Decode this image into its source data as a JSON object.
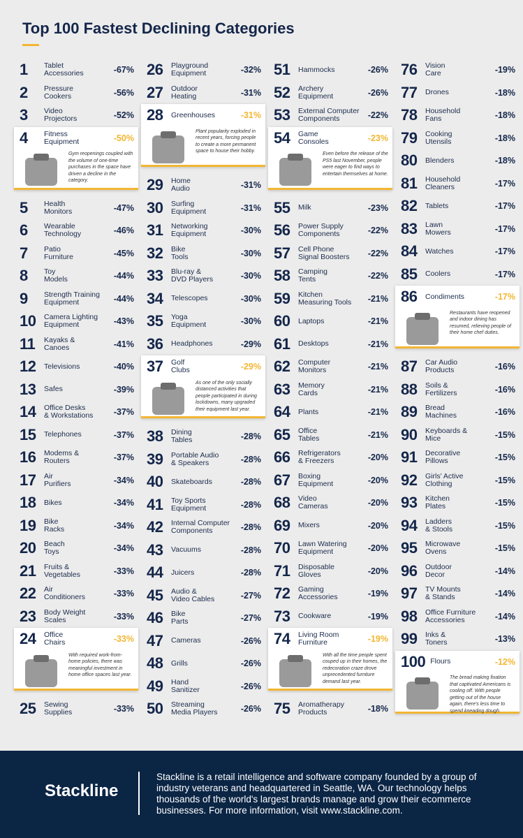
{
  "title": "Top 100 Fastest Declining Categories",
  "items": [
    {
      "rank": 1,
      "name": [
        "Tablet",
        "Accessories"
      ],
      "change": "-67%"
    },
    {
      "rank": 2,
      "name": [
        "Pressure",
        "Cookers"
      ],
      "change": "-56%"
    },
    {
      "rank": 3,
      "name": [
        "Video",
        "Projectors"
      ],
      "change": "-52%"
    },
    {
      "rank": 4,
      "name": [
        "Fitness",
        "Equipment"
      ],
      "change": "-50%",
      "note": "Gym reopenings coupled with the volume of one-time purchases in the space have driven a decline in the category."
    },
    {
      "rank": 5,
      "name": [
        "Health",
        "Monitors"
      ],
      "change": "-47%"
    },
    {
      "rank": 6,
      "name": [
        "Wearable",
        "Technology"
      ],
      "change": "-46%"
    },
    {
      "rank": 7,
      "name": [
        "Patio",
        "Furniture"
      ],
      "change": "-45%"
    },
    {
      "rank": 8,
      "name": [
        "Toy",
        "Models"
      ],
      "change": "-44%"
    },
    {
      "rank": 9,
      "name": [
        "Strength Training",
        "Equipment"
      ],
      "change": "-44%"
    },
    {
      "rank": 10,
      "name": [
        "Camera Lighting",
        "Equipment"
      ],
      "change": "-43%"
    },
    {
      "rank": 11,
      "name": [
        "Kayaks &",
        "Canoes"
      ],
      "change": "-41%"
    },
    {
      "rank": 12,
      "name": [
        "Televisions"
      ],
      "change": "-40%"
    },
    {
      "rank": 13,
      "name": [
        "Safes"
      ],
      "change": "-39%"
    },
    {
      "rank": 14,
      "name": [
        "Office Desks",
        "& Workstations"
      ],
      "change": "-37%"
    },
    {
      "rank": 15,
      "name": [
        "Telephones"
      ],
      "change": "-37%"
    },
    {
      "rank": 16,
      "name": [
        "Modems &",
        "Routers"
      ],
      "change": "-37%"
    },
    {
      "rank": 17,
      "name": [
        "Air",
        "Purifiers"
      ],
      "change": "-34%"
    },
    {
      "rank": 18,
      "name": [
        "Bikes"
      ],
      "change": "-34%"
    },
    {
      "rank": 19,
      "name": [
        "Bike",
        "Racks"
      ],
      "change": "-34%"
    },
    {
      "rank": 20,
      "name": [
        "Beach",
        "Toys"
      ],
      "change": "-34%"
    },
    {
      "rank": 21,
      "name": [
        "Fruits &",
        "Vegetables"
      ],
      "change": "-33%"
    },
    {
      "rank": 22,
      "name": [
        "Air",
        "Conditioners"
      ],
      "change": "-33%"
    },
    {
      "rank": 23,
      "name": [
        "Body Weight",
        "Scales"
      ],
      "change": "-33%"
    },
    {
      "rank": 24,
      "name": [
        "Office",
        "Chairs"
      ],
      "change": "-33%",
      "note": "With required work-from-home policies, there was meaningful investment in home office spaces last year."
    },
    {
      "rank": 25,
      "name": [
        "Sewing",
        "Supplies"
      ],
      "change": "-33%"
    },
    {
      "rank": 26,
      "name": [
        "Playground",
        "Equipment"
      ],
      "change": "-32%"
    },
    {
      "rank": 27,
      "name": [
        "Outdoor",
        "Heating"
      ],
      "change": "-31%"
    },
    {
      "rank": 28,
      "name": [
        "Greenhouses"
      ],
      "change": "-31%",
      "note": "Plant popularity exploded in recent years, forcing people to create a more permanent space to house their hobby."
    },
    {
      "rank": 29,
      "name": [
        "Home",
        "Audio"
      ],
      "change": "-31%"
    },
    {
      "rank": 30,
      "name": [
        "Surfing",
        "Equipment"
      ],
      "change": "-31%"
    },
    {
      "rank": 31,
      "name": [
        "Networking",
        "Equipment"
      ],
      "change": "-30%"
    },
    {
      "rank": 32,
      "name": [
        "Bike",
        "Tools"
      ],
      "change": "-30%"
    },
    {
      "rank": 33,
      "name": [
        "Blu-ray &",
        "DVD Players"
      ],
      "change": "-30%"
    },
    {
      "rank": 34,
      "name": [
        "Telescopes"
      ],
      "change": "-30%"
    },
    {
      "rank": 35,
      "name": [
        "Yoga",
        "Equipment"
      ],
      "change": "-30%"
    },
    {
      "rank": 36,
      "name": [
        "Headphones"
      ],
      "change": "-29%"
    },
    {
      "rank": 37,
      "name": [
        "Golf",
        "Clubs"
      ],
      "change": "-29%",
      "note": "As one of the only socially distanced activities that people participated in during lockdowns, many upgraded their equipment last year."
    },
    {
      "rank": 38,
      "name": [
        "Dining",
        "Tables"
      ],
      "change": "-28%"
    },
    {
      "rank": 39,
      "name": [
        "Portable Audio",
        "& Speakers"
      ],
      "change": "-28%"
    },
    {
      "rank": 40,
      "name": [
        "Skateboards"
      ],
      "change": "-28%"
    },
    {
      "rank": 41,
      "name": [
        "Toy Sports",
        "Equipment"
      ],
      "change": "-28%"
    },
    {
      "rank": 42,
      "name": [
        "Internal Computer",
        "Components"
      ],
      "change": "-28%"
    },
    {
      "rank": 43,
      "name": [
        "Vacuums"
      ],
      "change": "-28%"
    },
    {
      "rank": 44,
      "name": [
        "Juicers"
      ],
      "change": "-28%"
    },
    {
      "rank": 45,
      "name": [
        "Audio &",
        "Video Cables"
      ],
      "change": "-27%"
    },
    {
      "rank": 46,
      "name": [
        "Bike",
        "Parts"
      ],
      "change": "-27%"
    },
    {
      "rank": 47,
      "name": [
        "Cameras"
      ],
      "change": "-26%"
    },
    {
      "rank": 48,
      "name": [
        "Grills"
      ],
      "change": "-26%"
    },
    {
      "rank": 49,
      "name": [
        "Hand",
        "Sanitizer"
      ],
      "change": "-26%"
    },
    {
      "rank": 50,
      "name": [
        "Streaming",
        "Media Players"
      ],
      "change": "-26%"
    },
    {
      "rank": 51,
      "name": [
        "Hammocks"
      ],
      "change": "-26%"
    },
    {
      "rank": 52,
      "name": [
        "Archery",
        "Equipment"
      ],
      "change": "-26%"
    },
    {
      "rank": 53,
      "name": [
        "External Computer",
        "Components"
      ],
      "change": "-22%"
    },
    {
      "rank": 54,
      "name": [
        "Game",
        "Consoles"
      ],
      "change": "-23%",
      "note": "Even before the release of the PS5 last November, people were eager to find ways to entertain themselves at home."
    },
    {
      "rank": 55,
      "name": [
        "Milk"
      ],
      "change": "-23%"
    },
    {
      "rank": 56,
      "name": [
        "Power Supply",
        "Components"
      ],
      "change": "-22%"
    },
    {
      "rank": 57,
      "name": [
        "Cell Phone",
        "Signal Boosters"
      ],
      "change": "-22%"
    },
    {
      "rank": 58,
      "name": [
        "Camping",
        "Tents"
      ],
      "change": "-22%"
    },
    {
      "rank": 59,
      "name": [
        "Kitchen",
        "Measuring Tools"
      ],
      "change": "-21%"
    },
    {
      "rank": 60,
      "name": [
        "Laptops"
      ],
      "change": "-21%"
    },
    {
      "rank": 61,
      "name": [
        "Desktops"
      ],
      "change": "-21%"
    },
    {
      "rank": 62,
      "name": [
        "Computer",
        "Monitors"
      ],
      "change": "-21%"
    },
    {
      "rank": 63,
      "name": [
        "Memory",
        "Cards"
      ],
      "change": "-21%"
    },
    {
      "rank": 64,
      "name": [
        "Plants"
      ],
      "change": "-21%"
    },
    {
      "rank": 65,
      "name": [
        "Office",
        "Tables"
      ],
      "change": "-21%"
    },
    {
      "rank": 66,
      "name": [
        "Refrigerators",
        "& Freezers"
      ],
      "change": "-20%"
    },
    {
      "rank": 67,
      "name": [
        "Boxing",
        "Equipment"
      ],
      "change": "-20%"
    },
    {
      "rank": 68,
      "name": [
        "Video",
        "Cameras"
      ],
      "change": "-20%"
    },
    {
      "rank": 69,
      "name": [
        "Mixers"
      ],
      "change": "-20%"
    },
    {
      "rank": 70,
      "name": [
        "Lawn Watering",
        "Equipment"
      ],
      "change": "-20%"
    },
    {
      "rank": 71,
      "name": [
        "Disposable",
        "Gloves"
      ],
      "change": "-20%"
    },
    {
      "rank": 72,
      "name": [
        "Gaming",
        "Accessories"
      ],
      "change": "-19%"
    },
    {
      "rank": 73,
      "name": [
        "Cookware"
      ],
      "change": "-19%"
    },
    {
      "rank": 74,
      "name": [
        "Living Room",
        "Furniture"
      ],
      "change": "-19%",
      "note": "With all the time people spent couped up in their homes, the redecoration craze drove unprecedented furniture demand last year."
    },
    {
      "rank": 75,
      "name": [
        "Aromatherapy",
        "Products"
      ],
      "change": "-18%"
    },
    {
      "rank": 76,
      "name": [
        "Vision",
        "Care"
      ],
      "change": "-19%"
    },
    {
      "rank": 77,
      "name": [
        "Drones"
      ],
      "change": "-18%"
    },
    {
      "rank": 78,
      "name": [
        "Household",
        "Fans"
      ],
      "change": "-18%"
    },
    {
      "rank": 79,
      "name": [
        "Cooking",
        "Utensils"
      ],
      "change": "-18%"
    },
    {
      "rank": 80,
      "name": [
        "Blenders"
      ],
      "change": "-18%"
    },
    {
      "rank": 81,
      "name": [
        "Household",
        "Cleaners"
      ],
      "change": "-17%"
    },
    {
      "rank": 82,
      "name": [
        "Tablets"
      ],
      "change": "-17%"
    },
    {
      "rank": 83,
      "name": [
        "Lawn",
        "Mowers"
      ],
      "change": "-17%"
    },
    {
      "rank": 84,
      "name": [
        "Watches"
      ],
      "change": "-17%"
    },
    {
      "rank": 85,
      "name": [
        "Coolers"
      ],
      "change": "-17%"
    },
    {
      "rank": 86,
      "name": [
        "Condiments"
      ],
      "change": "-17%",
      "note": "Restaurants have reopened and indoor dining has resumed, relieving people of their home chef duties."
    },
    {
      "rank": 87,
      "name": [
        "Car Audio",
        "Products"
      ],
      "change": "-16%"
    },
    {
      "rank": 88,
      "name": [
        "Soils &",
        "Fertilizers"
      ],
      "change": "-16%"
    },
    {
      "rank": 89,
      "name": [
        "Bread",
        "Machines"
      ],
      "change": "-16%"
    },
    {
      "rank": 90,
      "name": [
        "Keyboards &",
        "Mice"
      ],
      "change": "-15%"
    },
    {
      "rank": 91,
      "name": [
        "Decorative",
        "Pillows"
      ],
      "change": "-15%"
    },
    {
      "rank": 92,
      "name": [
        "Girls' Active",
        "Clothing"
      ],
      "change": "-15%"
    },
    {
      "rank": 93,
      "name": [
        "Kitchen",
        "Plates"
      ],
      "change": "-15%"
    },
    {
      "rank": 94,
      "name": [
        "Ladders",
        "& Stools"
      ],
      "change": "-15%"
    },
    {
      "rank": 95,
      "name": [
        "Microwave",
        "Ovens"
      ],
      "change": "-15%"
    },
    {
      "rank": 96,
      "name": [
        "Outdoor",
        "Decor"
      ],
      "change": "-14%"
    },
    {
      "rank": 97,
      "name": [
        "TV Mounts",
        "& Stands"
      ],
      "change": "-14%"
    },
    {
      "rank": 98,
      "name": [
        "Office Furniture",
        "Accessories"
      ],
      "change": "-14%"
    },
    {
      "rank": 99,
      "name": [
        "Inks &",
        "Toners"
      ],
      "change": "-13%"
    },
    {
      "rank": 100,
      "name": [
        "Flours"
      ],
      "change": "-12%",
      "note": "The bread making fixation that captivated Americans is cooling off. With people getting out of the house again, there's less time to spend kneading dough."
    }
  ],
  "footer": {
    "brand": "Stackline",
    "text": "Stackline is a retail intelligence and software company founded by a group of industry veterans and headquartered in Seattle, WA. Our technology helps thousands of the world's largest brands manage and grow their ecommerce businesses. For more information, visit www.stackline.com."
  }
}
